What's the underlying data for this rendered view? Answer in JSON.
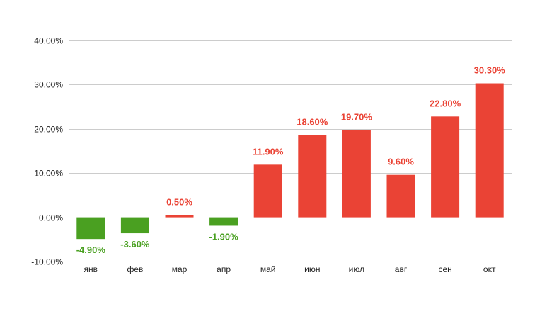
{
  "chart_data": {
    "type": "bar",
    "title": "",
    "xlabel": "",
    "ylabel": "",
    "categories": [
      "янв",
      "фев",
      "мар",
      "апр",
      "май",
      "июн",
      "июл",
      "авг",
      "сен",
      "окт"
    ],
    "values": [
      -4.9,
      -3.6,
      0.5,
      -1.9,
      11.9,
      18.6,
      19.7,
      9.6,
      22.8,
      30.3
    ],
    "data_labels": [
      "-4.90%",
      "-3.60%",
      "0.50%",
      "-1.90%",
      "11.90%",
      "18.60%",
      "19.70%",
      "9.60%",
      "22.80%",
      "30.30%"
    ],
    "ylim": [
      -10,
      40
    ],
    "yticks": [
      -10,
      0,
      10,
      20,
      30,
      40
    ],
    "ytick_labels": [
      "-10.00%",
      "0.00%",
      "10.00%",
      "20.00%",
      "30.00%",
      "40.00%"
    ],
    "grid": true,
    "legend": "none",
    "colors": {
      "positive": "#ea4335",
      "negative": "#4aa021",
      "grid": "#cccccc",
      "zero_line": "#333333"
    }
  }
}
